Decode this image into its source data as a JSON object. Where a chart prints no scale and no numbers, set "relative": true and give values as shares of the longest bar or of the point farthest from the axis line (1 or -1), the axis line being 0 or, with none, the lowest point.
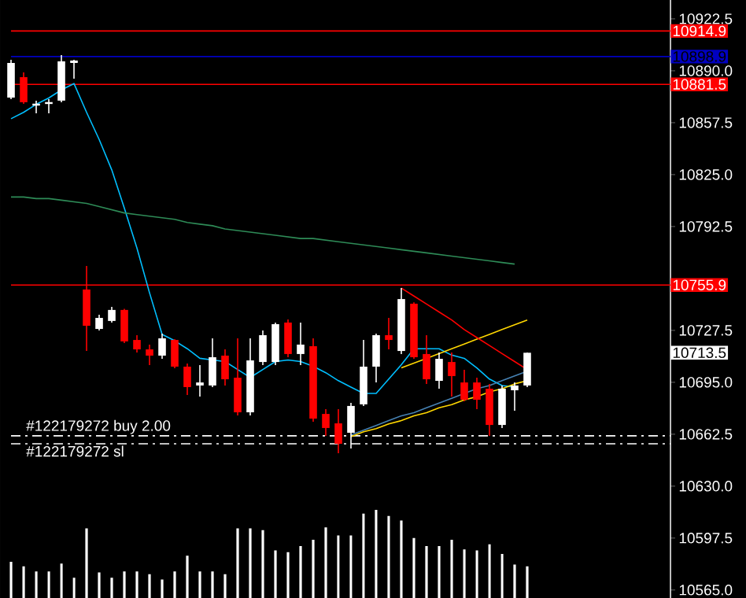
{
  "chart_data": [
    {
      "type": "candlestick",
      "categories": [
        null,
        null,
        null,
        null,
        null,
        null,
        null,
        null,
        null,
        null,
        null,
        null,
        null,
        null,
        null,
        null,
        null,
        null,
        null,
        null,
        null,
        null,
        null,
        null,
        null,
        null,
        null,
        null,
        null,
        null,
        null,
        null,
        null,
        null,
        null,
        null,
        null,
        null,
        null,
        null,
        null,
        null
      ],
      "ohlc": [
        [
          10873.2,
          10896.9,
          10872.2,
          10894.9
        ],
        [
          10886.0,
          10889.0,
          10869.3,
          10870.3
        ],
        [
          10869.3,
          10871.3,
          10863.4,
          10868.3
        ],
        [
          10870.3,
          10872.2,
          10863.4,
          10869.3
        ],
        [
          10871.3,
          10899.8,
          10870.3,
          10895.9
        ],
        [
          10894.9,
          10896.9,
          10885.1,
          10896.4
        ],
        [
          10753.1,
          10767.8,
          10714.6,
          10730.4
        ],
        [
          10728.4,
          10737.3,
          10727.4,
          10735.3
        ],
        [
          10733.4,
          10742.2,
          10732.4,
          10740.3
        ],
        [
          10740.3,
          10741.0,
          10719.6,
          10720.6
        ],
        [
          10721.5,
          10724.5,
          10713.7,
          10715.6
        ],
        [
          10715.6,
          10718.6,
          10705.8,
          10711.7
        ],
        [
          10711.7,
          10725.5,
          10709.7,
          10722.5
        ],
        [
          10721.5,
          10722.0,
          10703.8,
          10704.8
        ],
        [
          10704.8,
          10706.8,
          10687.1,
          10692.0
        ],
        [
          10693.0,
          10705.8,
          10686.1,
          10694.9
        ],
        [
          10693.0,
          10722.5,
          10692.0,
          10710.7
        ],
        [
          10711.7,
          10715.6,
          10693.0,
          10696.9
        ],
        [
          10697.9,
          10722.5,
          10674.3,
          10676.2
        ],
        [
          10676.2,
          10722.5,
          10674.3,
          10708.7
        ],
        [
          10707.7,
          10727.4,
          10705.8,
          10724.5
        ],
        [
          10707.7,
          10732.4,
          10705.8,
          10731.4
        ],
        [
          10732.4,
          10734.3,
          10710.7,
          10712.7
        ],
        [
          10712.7,
          10732.4,
          10705.8,
          10718.6
        ],
        [
          10717.6,
          10722.5,
          10670.3,
          10672.3
        ],
        [
          10675.2,
          10678.2,
          10661.5,
          10666.4
        ],
        [
          10669.3,
          10678.2,
          10650.6,
          10656.5
        ],
        [
          10663.4,
          10682.1,
          10653.6,
          10680.2
        ],
        [
          10681.2,
          10721.5,
          10680.2,
          10704.8
        ],
        [
          10704.8,
          10725.5,
          10694.9,
          10724.5
        ],
        [
          10724.5,
          10735.3,
          10715.6,
          10721.5
        ],
        [
          10714.6,
          10754.0,
          10712.7,
          10747.1
        ],
        [
          10744.2,
          10745.0,
          10709.7,
          10710.7
        ],
        [
          10712.7,
          10724.5,
          10694.0,
          10696.9
        ],
        [
          10695.9,
          10713.7,
          10691.0,
          10709.7
        ],
        [
          10707.7,
          10713.7,
          10686.1,
          10698.9
        ],
        [
          10694.9,
          10702.8,
          10683.1,
          10684.1
        ],
        [
          10694.9,
          10697.9,
          10678.2,
          10684.1
        ],
        [
          10691.0,
          10694.0,
          10661.5,
          10668.3
        ],
        [
          10668.3,
          10693.0,
          10666.4,
          10691.0
        ],
        [
          10690.0,
          10694.9,
          10677.2,
          10693.0
        ],
        [
          10693.0,
          10713.7,
          10692.0,
          10713.5
        ]
      ],
      "colors": [
        "#ffffff",
        "#ff0000",
        "#ffffff",
        "#ffffff",
        "#ffffff",
        "#ffffff",
        "#ff0000",
        "#ffffff",
        "#ffffff",
        "#ff0000",
        "#ff0000",
        "#ff0000",
        "#ffffff",
        "#ff0000",
        "#ff0000",
        "#ffffff",
        "#ffffff",
        "#ff0000",
        "#ff0000",
        "#ffffff",
        "#ffffff",
        "#ffffff",
        "#ff0000",
        "#ffffff",
        "#ff0000",
        "#ff0000",
        "#ff0000",
        "#ffffff",
        "#ffffff",
        "#ffffff",
        "#ff0000",
        "#ffffff",
        "#ff0000",
        "#ff0000",
        "#ffffff",
        "#ff0000",
        "#ff0000",
        "#ff0000",
        "#ff0000",
        "#ffffff",
        "#ffffff",
        "#ffffff"
      ],
      "series": [
        {
          "type": "line",
          "color": "#00bfff",
          "values": [
            10860,
            10864,
            10869,
            10873,
            10878,
            10882,
            10864,
            10847,
            10828,
            10804,
            10779,
            10751,
            10725,
            10721,
            10716,
            10710,
            10709,
            10708,
            10703,
            10698,
            10703,
            10708,
            10709,
            10708,
            10705,
            10701,
            10696,
            10692,
            10688,
            10688,
            10697,
            10706,
            10716,
            10716,
            10716,
            10712,
            10710,
            10704,
            10697,
            10693,
            10692,
            null
          ]
        },
        {
          "type": "line",
          "color": "#2e8b57",
          "values": [
            10811,
            10811,
            10810,
            10810,
            10809,
            10808,
            10807,
            10805,
            10803,
            10801,
            10800,
            10799,
            10798,
            10797,
            10795,
            10794,
            10793,
            10791,
            10790,
            10789,
            10788,
            10787,
            10786,
            10785,
            10785,
            10784,
            10783,
            10782,
            10781,
            10780,
            10779,
            10778,
            10777,
            10776,
            10775,
            10774,
            10773,
            10772,
            10771,
            10770,
            10769,
            null
          ]
        },
        {
          "type": "line",
          "color": "#ffd700",
          "values": [
            null,
            null,
            null,
            null,
            null,
            null,
            null,
            null,
            null,
            null,
            null,
            null,
            null,
            null,
            null,
            null,
            null,
            null,
            null,
            null,
            null,
            null,
            null,
            null,
            null,
            null,
            null,
            null,
            null,
            null,
            null,
            10704,
            10707,
            10710,
            10713,
            10716,
            10719,
            10722,
            10725,
            10728,
            10731,
            10734
          ]
        },
        {
          "type": "line",
          "color": "#ff0000",
          "values": [
            null,
            null,
            null,
            null,
            null,
            null,
            null,
            null,
            null,
            null,
            null,
            null,
            null,
            null,
            null,
            null,
            null,
            null,
            null,
            null,
            null,
            null,
            null,
            null,
            null,
            null,
            null,
            null,
            null,
            null,
            null,
            10754,
            10749,
            10744,
            10739,
            10734,
            10728,
            10723,
            10718,
            10713,
            10708,
            10703
          ]
        },
        {
          "type": "line",
          "color": "#4682b4",
          "values": [
            null,
            null,
            null,
            null,
            null,
            null,
            null,
            null,
            null,
            null,
            null,
            null,
            null,
            null,
            null,
            null,
            null,
            null,
            null,
            null,
            null,
            null,
            null,
            null,
            null,
            null,
            null,
            10662,
            10665,
            10668,
            10671,
            10674,
            10676,
            10679,
            10682,
            10685,
            10688,
            10691,
            10693,
            10696,
            10699,
            10702
          ]
        },
        {
          "type": "line",
          "color": "#ffd700",
          "values": [
            null,
            null,
            null,
            null,
            null,
            null,
            null,
            null,
            null,
            null,
            null,
            null,
            null,
            null,
            null,
            null,
            null,
            null,
            null,
            null,
            null,
            null,
            null,
            null,
            null,
            null,
            null,
            10661,
            10664,
            10666,
            10669,
            10671,
            10674,
            10676,
            10679,
            10681,
            10684,
            10686,
            10689,
            10691,
            10694,
            10696
          ]
        }
      ],
      "ylim": [
        10560.0,
        10934.3
      ],
      "yticks": [
        {
          "value": 10565,
          "label": "10565.0"
        },
        {
          "value": 10597.5,
          "label": "10597.5"
        },
        {
          "value": 10630,
          "label": "10630.0"
        },
        {
          "value": 10662.5,
          "label": "10662.5"
        },
        {
          "value": 10695,
          "label": "10695.0"
        },
        {
          "value": 10727.5,
          "label": "10727.5"
        },
        {
          "value": 10792.5,
          "label": "10792.5"
        },
        {
          "value": 10825,
          "label": "10825.0"
        },
        {
          "value": 10857.5,
          "label": "10857.5"
        },
        {
          "value": 10890,
          "label": "10890.0"
        },
        {
          "value": 10922.5,
          "label": "10922.5"
        }
      ],
      "tick_labels": "y",
      "ref_lines": [
        {
          "axis": "y",
          "value": 10914.9,
          "label": "10914.9",
          "color": "#ff0000"
        },
        {
          "axis": "y",
          "value": 10898.9,
          "label": "10898.9",
          "color": "#0000c0"
        },
        {
          "axis": "y",
          "value": 10881.5,
          "label": "10881.5",
          "color": "#ff0000"
        },
        {
          "axis": "y",
          "value": 10755.9,
          "label": "10755.9",
          "color": "#ff0000"
        },
        {
          "axis": "y",
          "value": 10661.5,
          "label": "#122179272 buy 2.00",
          "color": "#ffffff",
          "line_style": "dashed"
        },
        {
          "axis": "y",
          "value": 10656.5,
          "label": "#122179272 sl",
          "color": "#ffffff",
          "line_style": "dashed"
        }
      ],
      "annotations": [
        "10713.5"
      ]
    },
    {
      "type": "bar",
      "relative": true,
      "color": "#ffffff",
      "categories": [
        null,
        null,
        null,
        null,
        null,
        null,
        null,
        null,
        null,
        null,
        null,
        null,
        null,
        null,
        null,
        null,
        null,
        null,
        null,
        null,
        null,
        null,
        null,
        null,
        null,
        null,
        null,
        null,
        null,
        null,
        null,
        null,
        null,
        null,
        null,
        null,
        null,
        null,
        null,
        null,
        null,
        null
      ],
      "values": [
        0.41,
        0.36,
        0.3,
        0.3,
        0.39,
        0.23,
        0.79,
        0.29,
        0.23,
        0.3,
        0.3,
        0.27,
        0.21,
        0.3,
        0.48,
        0.3,
        0.3,
        0.27,
        0.79,
        0.79,
        0.77,
        0.54,
        0.52,
        0.59,
        0.66,
        0.8,
        0.71,
        0.71,
        0.96,
        1,
        0.93,
        0.88,
        0.68,
        0.59,
        0.59,
        0.66,
        0.55,
        0.54,
        0.61,
        0.5,
        0.38,
        0.36
      ]
    }
  ]
}
